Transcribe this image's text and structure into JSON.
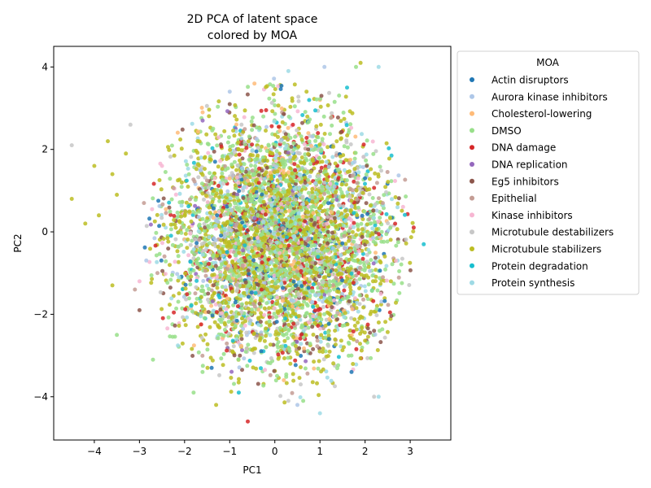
{
  "chart_data": {
    "type": "scatter",
    "title": [
      "2D PCA of latent space",
      "colored by MOA"
    ],
    "xlabel": "PC1",
    "ylabel": "PC2",
    "xlim": [
      -4.9,
      3.9
    ],
    "ylim": [
      -5.05,
      4.5
    ],
    "xticks": [
      -4,
      -3,
      -2,
      -1,
      0,
      1,
      2,
      3
    ],
    "yticks": [
      -4,
      -2,
      0,
      2,
      4
    ],
    "grid": false,
    "legend": {
      "title": "MOA",
      "placement": "outside-right"
    },
    "series": [
      {
        "name": "Actin disruptors",
        "color": "#1f77b4",
        "count": 160,
        "outliers": [
          [
            1.7,
            -3.4
          ],
          [
            -1.4,
            -3.3
          ],
          [
            2.0,
            1.3
          ],
          [
            -0.4,
            -2.5
          ],
          [
            1.2,
            -2.6
          ]
        ]
      },
      {
        "name": "Aurora kinase inhibitors",
        "color": "#aec7e8",
        "count": 160,
        "outliers": [
          [
            1.1,
            4.0
          ],
          [
            -1.0,
            3.4
          ],
          [
            0.5,
            -4.2
          ]
        ]
      },
      {
        "name": "Cholesterol-lowering",
        "color": "#ffbb78",
        "count": 160,
        "outliers": [
          [
            1.0,
            3.2
          ],
          [
            0.2,
            -3.6
          ],
          [
            -1.6,
            2.9
          ]
        ]
      },
      {
        "name": "DMSO",
        "color": "#98df8a",
        "count": 1400,
        "outliers": [
          [
            -3.5,
            -2.5
          ],
          [
            -2.7,
            -3.1
          ],
          [
            1.8,
            4.0
          ],
          [
            -1.8,
            -3.9
          ]
        ]
      },
      {
        "name": "DNA damage",
        "color": "#d62728",
        "count": 260,
        "outliers": [
          [
            -0.6,
            -4.6
          ],
          [
            -0.4,
            0.3
          ],
          [
            1.0,
            0.8
          ],
          [
            0.3,
            -0.6
          ]
        ]
      },
      {
        "name": "DNA replication",
        "color": "#9467bd",
        "count": 60,
        "outliers": [
          [
            -1.6,
            2.7
          ],
          [
            0.4,
            1.0
          ]
        ]
      },
      {
        "name": "Eg5 inhibitors",
        "color": "#8c564b",
        "count": 280,
        "outliers": [
          [
            -3.0,
            -1.9
          ],
          [
            -1.0,
            3.1
          ],
          [
            2.2,
            -2.4
          ]
        ]
      },
      {
        "name": "Epithelial",
        "color": "#c49c94",
        "count": 200,
        "outliers": [
          [
            -2.6,
            -1.0
          ],
          [
            -3.1,
            -1.4
          ],
          [
            -2.9,
            0.7
          ]
        ]
      },
      {
        "name": "Kinase inhibitors",
        "color": "#f7b6d2",
        "count": 200,
        "outliers": [
          [
            -3.0,
            -1.2
          ],
          [
            -2.5,
            1.6
          ]
        ]
      },
      {
        "name": "Microtubule destabilizers",
        "color": "#c7c7c7",
        "count": 360,
        "outliers": [
          [
            -4.5,
            2.1
          ],
          [
            -3.2,
            2.6
          ],
          [
            0.3,
            -4.1
          ],
          [
            2.2,
            -4.0
          ]
        ]
      },
      {
        "name": "Microtubule stabilizers",
        "color": "#bcbd22",
        "count": 1500,
        "outliers": [
          [
            -4.5,
            0.8
          ],
          [
            -4.0,
            1.6
          ],
          [
            -3.7,
            2.2
          ],
          [
            -3.9,
            0.4
          ],
          [
            -3.5,
            0.9
          ],
          [
            -4.2,
            0.2
          ],
          [
            -3.6,
            1.4
          ],
          [
            -3.3,
            1.9
          ],
          [
            -1.3,
            -4.2
          ],
          [
            1.9,
            4.1
          ],
          [
            -3.6,
            -1.3
          ]
        ]
      },
      {
        "name": "Protein degradation",
        "color": "#17becf",
        "count": 140,
        "outliers": [
          [
            3.3,
            -0.3
          ],
          [
            1.6,
            3.5
          ],
          [
            -0.8,
            -3.9
          ]
        ]
      },
      {
        "name": "Protein synthesis",
        "color": "#9edae5",
        "count": 320,
        "outliers": [
          [
            2.3,
            4.0
          ],
          [
            2.3,
            -4.0
          ],
          [
            1.0,
            -4.4
          ],
          [
            0.3,
            3.9
          ]
        ]
      }
    ]
  }
}
